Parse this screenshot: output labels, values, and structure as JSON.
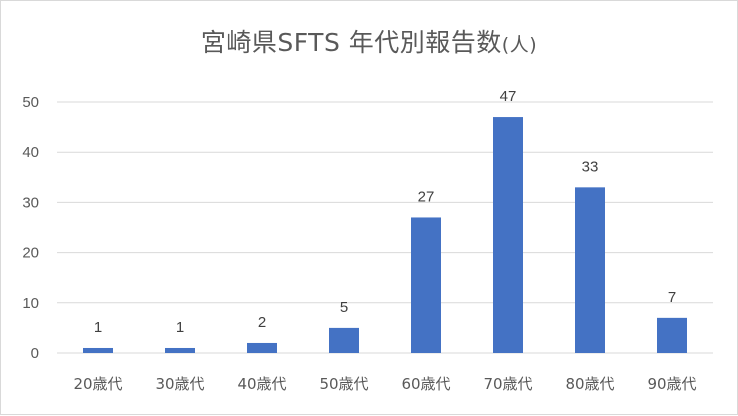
{
  "chart_data": {
    "type": "bar",
    "title": "宮崎県SFTS 年代別報告数",
    "title_unit": "(人)",
    "categories": [
      "20歳代",
      "30歳代",
      "40歳代",
      "50歳代",
      "60歳代",
      "70歳代",
      "80歳代",
      "90歳代"
    ],
    "values": [
      1,
      1,
      2,
      5,
      27,
      47,
      33,
      7
    ],
    "yticks": [
      0,
      10,
      20,
      30,
      40,
      50
    ],
    "ylim": [
      0,
      50
    ],
    "grid": true,
    "data_labels": true,
    "bar_color": "#4472C4",
    "grid_color": "#d9d9d9"
  }
}
